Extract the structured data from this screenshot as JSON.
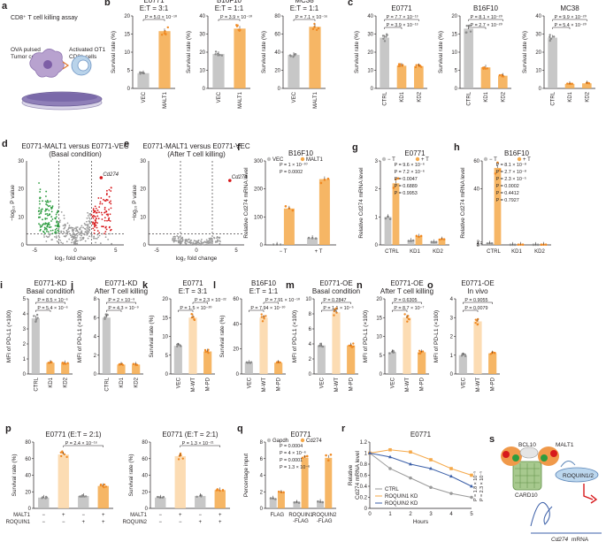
{
  "colors": {
    "gray": "#bdbdbd",
    "grayDot": "#8c8c8c",
    "orange": "#f5a94a",
    "orangeDot": "#f08a24",
    "light": "#fbd6a6",
    "red": "#d7191c",
    "green": "#2c9c3f",
    "blue": "#3b5fa8"
  },
  "panel_a": {
    "letter": "a",
    "title": "CD8⁺ T cell killing assay",
    "label_left": "OVA pulsed\nTumor cells",
    "label_right": "Activated OT1\nCD8⁺ cells"
  },
  "panel_s": {
    "letter": "s",
    "labels": [
      "BCL10",
      "MALT1",
      "CARD10",
      "ROQUIN1/2",
      "Cd274",
      "mRNA"
    ]
  },
  "chart_data": [
    {
      "panel": "b",
      "type": "bar",
      "title": "E0771\nE:T = 3:1",
      "ylabel": "Survival rate (%)",
      "ylim": [
        0,
        20
      ],
      "yticks": [
        0,
        5,
        10,
        15,
        20
      ],
      "categories": [
        "VEC",
        "MALT1"
      ],
      "values": [
        4.2,
        15.8
      ],
      "colors": [
        "gray",
        "orange"
      ],
      "pvalues": [
        {
          "text": "P = 5.0 × 10⁻¹⁰",
          "from": 0,
          "to": 1
        }
      ]
    },
    {
      "panel": "b",
      "type": "bar",
      "title": "B16F10\nE:T = 1:1",
      "ylabel": "Survival rate (%)",
      "ylim": [
        0,
        40
      ],
      "yticks": [
        0,
        10,
        20,
        30,
        40
      ],
      "categories": [
        "VEC",
        "MALT1"
      ],
      "values": [
        19,
        33
      ],
      "colors": [
        "gray",
        "orange"
      ],
      "pvalues": [
        {
          "text": "P = 3.9 × 10⁻¹⁰",
          "from": 0,
          "to": 1
        }
      ]
    },
    {
      "panel": "b",
      "type": "bar",
      "title": "MC38\nE:T = 1:1",
      "ylabel": "Survival rate (%)",
      "ylim": [
        0,
        80
      ],
      "yticks": [
        0,
        20,
        40,
        60,
        80
      ],
      "categories": [
        "VEC",
        "MALT1"
      ],
      "values": [
        37,
        68
      ],
      "colors": [
        "gray",
        "orange"
      ],
      "pvalues": [
        {
          "text": "P = 7.1 × 10⁻¹⁶",
          "from": 0,
          "to": 1
        }
      ]
    },
    {
      "panel": "c",
      "type": "bar",
      "title": "E0771",
      "ylabel": "Survival rate (%)",
      "ylim": [
        0,
        40
      ],
      "yticks": [
        0,
        10,
        20,
        30,
        40
      ],
      "categories": [
        "CTRL",
        "KD1",
        "KD2"
      ],
      "values": [
        28,
        12.5,
        12.3
      ],
      "colors": [
        "gray",
        "orange",
        "orange"
      ],
      "pvalues": [
        {
          "text": "P = 7.7 × 10⁻¹³",
          "from": 0,
          "to": 2
        },
        {
          "text": "P = 3.9 × 10⁻¹³",
          "from": 0,
          "to": 1
        }
      ]
    },
    {
      "panel": "c",
      "type": "bar",
      "title": "B16F10",
      "ylabel": "Survival rate (%)",
      "ylim": [
        0,
        20
      ],
      "yticks": [
        0,
        5,
        10,
        15,
        20
      ],
      "categories": [
        "CTRL",
        "KD1",
        "KD2"
      ],
      "values": [
        16.5,
        5.8,
        3.5
      ],
      "colors": [
        "gray",
        "orange",
        "orange"
      ],
      "pvalues": [
        {
          "text": "P = 8.1 × 10⁻²⁰",
          "from": 0,
          "to": 2
        },
        {
          "text": "P = 2.7 × 10⁻²⁰",
          "from": 0,
          "to": 1
        }
      ]
    },
    {
      "panel": "c",
      "type": "bar",
      "title": "MC38",
      "ylabel": "Survival rate (%)",
      "ylim": [
        0,
        40
      ],
      "yticks": [
        0,
        10,
        20,
        30,
        40
      ],
      "categories": [
        "CTRL",
        "KD1",
        "KD2"
      ],
      "values": [
        28,
        2.5,
        2.8
      ],
      "colors": [
        "gray",
        "orange",
        "orange"
      ],
      "pvalues": [
        {
          "text": "P = 9.9 × 10⁻²⁰",
          "from": 0,
          "to": 2
        },
        {
          "text": "P = 5.4 × 10⁻²⁰",
          "from": 0,
          "to": 1
        }
      ]
    },
    {
      "panel": "d",
      "type": "scatter",
      "title": "E0771-MALT1 versus E0771-VEC\n(Basal condition)",
      "xlabel": "log₂ fold change",
      "ylabel": "−log₁₀ P value",
      "xlim": [
        -6,
        6
      ],
      "ylim": [
        0,
        30
      ],
      "highlight": "Cd274",
      "volcano": "dense"
    },
    {
      "panel": "e",
      "type": "scatter",
      "title": "E0771-MALT1 versus E0771-VEC\n(After T cell killing)",
      "xlabel": "log₂ fold change",
      "ylabel": "−log₁₀ P value",
      "xlim": [
        -6,
        6
      ],
      "ylim": [
        0,
        30
      ],
      "highlight": "Cd274",
      "volcano": "sparse"
    },
    {
      "panel": "f",
      "type": "bar",
      "title": "B16F10",
      "ylabel": "Relative Cd274 mRNA level",
      "ylim": [
        0,
        300
      ],
      "yticks": [
        0,
        100,
        200,
        300
      ],
      "categories": [
        "− T",
        "+ T"
      ],
      "series": [
        {
          "name": "VEC",
          "values": [
            1,
            25
          ]
        },
        {
          "name": "MALT1",
          "values": [
            130,
            235
          ]
        }
      ],
      "pvalues": [
        {
          "text": "P = 1 × 10⁻¹⁰",
          "group": 0
        },
        {
          "text": "P = 0.0002",
          "group": 1
        }
      ]
    },
    {
      "panel": "g",
      "type": "bar",
      "title": "E0771",
      "ylabel": "Relative Cd274 mRNA level",
      "ylim": [
        0,
        3
      ],
      "yticks": [
        0,
        1,
        2,
        3
      ],
      "categories": [
        "CTRL",
        "KD1",
        "KD2"
      ],
      "series": [
        {
          "name": "− T",
          "values": [
            1,
            0.15,
            0.1
          ]
        },
        {
          "name": "+ T",
          "values": [
            2.2,
            0.3,
            0.2
          ]
        }
      ],
      "pvalues": [
        {
          "text": "P = 9.6 × 10⁻⁶"
        },
        {
          "text": "P = 7.2 × 10⁻⁶"
        },
        {
          "text": "P = 0.0047"
        },
        {
          "text": "P = 0.6889"
        },
        {
          "text": "P = 0.9953"
        }
      ]
    },
    {
      "panel": "h",
      "type": "bar",
      "title": "B16F10",
      "ylabel": "Relative Cd274 mRNA level",
      "ylim": [
        0,
        60
      ],
      "yticks": [
        0,
        1,
        2,
        40,
        60
      ],
      "categories": [
        "CTRL",
        "KD1",
        "KD2"
      ],
      "series": [
        {
          "name": "− T",
          "values": [
            1,
            0.1,
            0.1
          ]
        },
        {
          "name": "+ T",
          "values": [
            55,
            0.2,
            0.2
          ]
        }
      ],
      "pvalues": [
        {
          "text": "P = 8.1 × 10⁻⁸"
        },
        {
          "text": "P = 2.7 × 10⁻⁸"
        },
        {
          "text": "P = 2.3 × 10⁻⁵"
        },
        {
          "text": "P = 0.0002"
        },
        {
          "text": "P = 0.4412"
        },
        {
          "text": "P = 0.7927"
        }
      ]
    },
    {
      "panel": "i",
      "type": "bar",
      "title": "E0771-KD\nBasal condition",
      "ylabel": "MFI of PD-L1 (×100)",
      "ylim": [
        0,
        5
      ],
      "yticks": [
        0,
        1,
        2,
        3,
        4,
        5
      ],
      "categories": [
        "CTRL",
        "KD1",
        "KD2"
      ],
      "values": [
        3.7,
        0.75,
        0.72
      ],
      "colors": [
        "gray",
        "orange",
        "orange"
      ],
      "pvalues": [
        {
          "text": "P = 8.5 × 10⁻⁶",
          "from": 0,
          "to": 2
        },
        {
          "text": "P = 5.4 × 10⁻⁶",
          "from": 0,
          "to": 1
        }
      ]
    },
    {
      "panel": "j",
      "type": "bar",
      "title": "E0771-KD\nAfter T cell killing",
      "ylabel": "MFI of PD-L1 (×100)",
      "ylim": [
        0,
        8
      ],
      "yticks": [
        0,
        2,
        4,
        6,
        8
      ],
      "categories": [
        "CTRL",
        "KD1",
        "KD2"
      ],
      "values": [
        6,
        1,
        1
      ],
      "colors": [
        "gray",
        "orange",
        "orange"
      ],
      "pvalues": [
        {
          "text": "P = 2 × 10⁻⁹",
          "from": 0,
          "to": 2
        },
        {
          "text": "P = 4.3 × 10⁻⁹",
          "from": 0,
          "to": 1
        }
      ]
    },
    {
      "panel": "k",
      "type": "bar",
      "title": "E0771\nE:T = 3:1",
      "ylabel": "Survival rate (%)",
      "ylim": [
        0,
        20
      ],
      "yticks": [
        0,
        5,
        10,
        15,
        20
      ],
      "categories": [
        "VEC",
        "M-WT",
        "M-PD"
      ],
      "values": [
        7.5,
        15,
        6
      ],
      "colors": [
        "gray",
        "light",
        "orange"
      ],
      "pvalues": [
        {
          "text": "P = 2.3 × 10⁻²²",
          "from": 1,
          "to": 2
        },
        {
          "text": "P = 1.5 × 10⁻²⁰",
          "from": 0,
          "to": 1
        }
      ]
    },
    {
      "panel": "l",
      "type": "bar",
      "title": "B16F10\nE:T = 1:1",
      "ylabel": "Survival rate (%)",
      "ylim": [
        0,
        60
      ],
      "yticks": [
        0,
        20,
        40,
        60
      ],
      "categories": [
        "VEC",
        "M-WT",
        "M-PD"
      ],
      "values": [
        9,
        45,
        9
      ],
      "colors": [
        "gray",
        "light",
        "orange"
      ],
      "pvalues": [
        {
          "text": "P = 7.91 × 10⁻¹⁰",
          "from": 1,
          "to": 2
        },
        {
          "text": "P = 7.94 × 10⁻¹⁰",
          "from": 0,
          "to": 1
        }
      ]
    },
    {
      "panel": "m",
      "type": "bar",
      "title": "E0771-OE\nBasal condition",
      "ylabel": "MFI of PD-L1 (×100)",
      "ylim": [
        0,
        10
      ],
      "yticks": [
        0,
        2,
        4,
        6,
        8,
        10
      ],
      "categories": [
        "VEC",
        "M-WT",
        "M-PD"
      ],
      "values": [
        3.8,
        8.2,
        3.8
      ],
      "colors": [
        "gray",
        "light",
        "orange"
      ],
      "pvalues": [
        {
          "text": "P = 0.2847",
          "from": 0,
          "to": 2
        },
        {
          "text": "P = 1.1 × 10⁻⁵",
          "from": 0,
          "to": 1
        }
      ]
    },
    {
      "panel": "n",
      "type": "bar",
      "title": "E0771-OE\nAfter T cell killing",
      "ylabel": "MFI of PD-L1 (×100)",
      "ylim": [
        0,
        20
      ],
      "yticks": [
        0,
        5,
        10,
        15,
        20
      ],
      "categories": [
        "VEC",
        "M-WT",
        "M-PD"
      ],
      "values": [
        5.8,
        15,
        5.8
      ],
      "colors": [
        "gray",
        "light",
        "orange"
      ],
      "pvalues": [
        {
          "text": "P = 0.6305",
          "from": 0,
          "to": 2
        },
        {
          "text": "P = 8.7 × 10⁻⁷",
          "from": 0,
          "to": 1
        }
      ]
    },
    {
      "panel": "o",
      "type": "bar",
      "title": "E0771-OE\nIn vivo",
      "ylabel": "MFI of PD-L1 (×100)",
      "ylim": [
        0,
        4
      ],
      "yticks": [
        0,
        1,
        2,
        3,
        4
      ],
      "categories": [
        "VEC",
        "M-WT",
        "M-PD"
      ],
      "values": [
        1,
        2.8,
        1.1
      ],
      "colors": [
        "gray",
        "light",
        "orange"
      ],
      "pvalues": [
        {
          "text": "P = 0.9055",
          "from": 0,
          "to": 2
        },
        {
          "text": "P = 0.0079",
          "from": 0,
          "to": 1
        }
      ]
    },
    {
      "panel": "p",
      "type": "bar",
      "title": "E0771 (E:T = 2:1)",
      "ylabel": "Survival rate (%)",
      "ylim": [
        0,
        80
      ],
      "yticks": [
        0,
        20,
        40,
        60,
        80
      ],
      "categories": [
        "1",
        "2",
        "3",
        "4"
      ],
      "values": [
        13,
        65,
        15,
        27
      ],
      "colors": [
        "gray",
        "light",
        "gray",
        "orange"
      ],
      "pvalues": [
        {
          "text": "P = 2.4 × 10⁻¹⁶",
          "from": 1,
          "to": 3
        }
      ],
      "rows": [
        {
          "name": "MALT1",
          "marks": [
            "−",
            "+",
            "−",
            "+"
          ]
        },
        {
          "name": "ROQUIN1",
          "marks": [
            "−",
            "−",
            "+",
            "+"
          ]
        }
      ]
    },
    {
      "panel": "p",
      "type": "bar",
      "title": "E0771 (E:T = 2:1)",
      "ylabel": "Survival rate (%)",
      "ylim": [
        0,
        80
      ],
      "yticks": [
        0,
        20,
        40,
        60,
        80
      ],
      "categories": [
        "1",
        "2",
        "3",
        "4"
      ],
      "values": [
        13,
        63,
        15,
        22
      ],
      "colors": [
        "gray",
        "light",
        "gray",
        "orange"
      ],
      "pvalues": [
        {
          "text": "P = 1.3 × 10⁻²¹",
          "from": 1,
          "to": 3
        }
      ],
      "rows": [
        {
          "name": "MALT1",
          "marks": [
            "−",
            "+",
            "−",
            "+"
          ]
        },
        {
          "name": "ROQUIN2",
          "marks": [
            "−",
            "−",
            "+",
            "+"
          ]
        }
      ]
    },
    {
      "panel": "q",
      "type": "bar",
      "title": "E0771",
      "ylabel": "Percentage input",
      "ylim": [
        0,
        8
      ],
      "yticks": [
        0,
        2,
        4,
        6,
        8
      ],
      "categories": [
        "FLAG",
        "ROQUIN1\n-FLAG",
        "ROQUIN2\n-FLAG"
      ],
      "series": [
        {
          "name": "Gapdh",
          "values": [
            1.2,
            0.7,
            0.8
          ]
        },
        {
          "name": "Cd274",
          "values": [
            1.9,
            6.1,
            6.1
          ]
        }
      ],
      "pvalues": [
        {
          "text": "P = 0.0004"
        },
        {
          "text": "P = 4 × 10⁻⁶"
        },
        {
          "text": "P = 0.0001"
        },
        {
          "text": "P = 1.3 × 10⁻⁶"
        }
      ]
    },
    {
      "panel": "r",
      "type": "line",
      "title": "E0771",
      "xlabel": "Hours",
      "ylabel": "Relative\nCd274 mRNA level",
      "xlim": [
        0,
        5
      ],
      "ylim": [
        0,
        1.2
      ],
      "yticks": [
        0,
        0.2,
        0.4,
        0.6,
        0.8,
        1.0,
        1.2
      ],
      "x": [
        0,
        1,
        2,
        3,
        4,
        5
      ],
      "series": [
        {
          "name": "CTRL",
          "values": [
            1,
            0.72,
            0.55,
            0.38,
            0.27,
            0.2
          ]
        },
        {
          "name": "ROQUIN1 KD",
          "values": [
            1,
            1.06,
            1.02,
            0.88,
            0.72,
            0.6
          ]
        },
        {
          "name": "ROQUIN2 KD",
          "values": [
            1,
            0.93,
            0.8,
            0.72,
            0.58,
            0.4
          ]
        }
      ],
      "pvalues": [
        {
          "text": "P = 1.8 × 10⁻⁵"
        },
        {
          "text": "P = 2.3 × 10⁻⁵"
        }
      ]
    }
  ]
}
